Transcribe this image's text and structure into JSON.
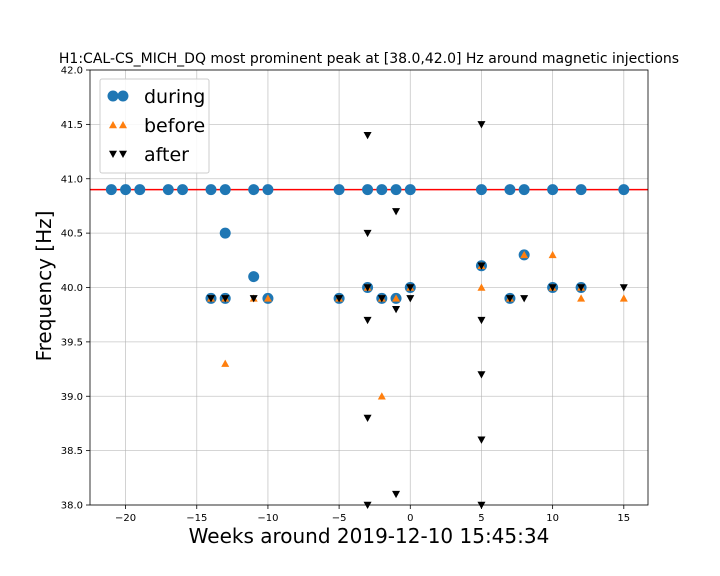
{
  "chart_data": {
    "type": "scatter",
    "title": "H1:CAL-CS_MICH_DQ most prominent peak at [38.0,42.0] Hz around magnetic injections",
    "xlabel": "Weeks around 2019-12-10 15:45:34",
    "ylabel": "Frequency [Hz]",
    "xlim": [
      -22.5,
      16.7
    ],
    "ylim": [
      38.0,
      42.0
    ],
    "x_ticks": [
      -20,
      -15,
      -10,
      -5,
      0,
      5,
      10,
      15
    ],
    "x_tick_labels": [
      "−20",
      "−15",
      "−10",
      "−5",
      "0",
      "5",
      "10",
      "15"
    ],
    "y_ticks": [
      38.0,
      38.5,
      39.0,
      39.5,
      40.0,
      40.5,
      41.0,
      41.5,
      42.0
    ],
    "y_tick_labels": [
      "38.0",
      "38.5",
      "39.0",
      "39.5",
      "40.0",
      "40.5",
      "41.0",
      "41.5",
      "42.0"
    ],
    "grid": true,
    "legend_position": "top-left",
    "reference_line": {
      "y": 40.9,
      "color": "#ff0000"
    },
    "series": [
      {
        "name": "during",
        "marker": "circle",
        "color": "#1f77b4",
        "points": [
          [
            -21,
            40.9
          ],
          [
            -20,
            40.9
          ],
          [
            -19,
            40.9
          ],
          [
            -17,
            40.9
          ],
          [
            -16,
            40.9
          ],
          [
            -14,
            40.9
          ],
          [
            -13,
            40.9
          ],
          [
            -11,
            40.9
          ],
          [
            -10,
            40.9
          ],
          [
            -5,
            40.9
          ],
          [
            -3,
            40.9
          ],
          [
            -2,
            40.9
          ],
          [
            -1,
            40.9
          ],
          [
            0,
            40.9
          ],
          [
            5,
            40.9
          ],
          [
            7,
            40.9
          ],
          [
            8,
            40.9
          ],
          [
            10,
            40.9
          ],
          [
            12,
            40.9
          ],
          [
            15,
            40.9
          ],
          [
            -13,
            40.5
          ],
          [
            -11,
            40.1
          ],
          [
            -14,
            39.9
          ],
          [
            -13,
            39.9
          ],
          [
            -10,
            39.9
          ],
          [
            -5,
            39.9
          ],
          [
            -3,
            40.0
          ],
          [
            -2,
            39.9
          ],
          [
            -1,
            39.9
          ],
          [
            0,
            40.0
          ],
          [
            5,
            40.2
          ],
          [
            7,
            39.9
          ],
          [
            8,
            40.3
          ],
          [
            10,
            40.0
          ],
          [
            12,
            40.0
          ]
        ]
      },
      {
        "name": "before",
        "marker": "triangle-up",
        "color": "#ff7f0e",
        "points": [
          [
            -14,
            39.9
          ],
          [
            -13,
            39.9
          ],
          [
            -13,
            39.3
          ],
          [
            -11,
            39.9
          ],
          [
            -10,
            39.9
          ],
          [
            -5,
            39.9
          ],
          [
            -3,
            40.0
          ],
          [
            -2,
            39.9
          ],
          [
            -2,
            39.0
          ],
          [
            -1,
            39.9
          ],
          [
            0,
            40.0
          ],
          [
            5,
            40.2
          ],
          [
            5,
            40.0
          ],
          [
            7,
            39.9
          ],
          [
            8,
            40.3
          ],
          [
            10,
            40.3
          ],
          [
            10,
            40.0
          ],
          [
            12,
            40.0
          ],
          [
            12,
            39.9
          ],
          [
            15,
            39.9
          ]
        ]
      },
      {
        "name": "after",
        "marker": "triangle-down",
        "color": "#000000",
        "points": [
          [
            -14,
            39.9
          ],
          [
            -13,
            39.9
          ],
          [
            -11,
            39.9
          ],
          [
            -5,
            39.9
          ],
          [
            -3,
            41.4
          ],
          [
            -3,
            40.5
          ],
          [
            -3,
            40.0
          ],
          [
            -3,
            39.7
          ],
          [
            -3,
            38.8
          ],
          [
            -3,
            38.0
          ],
          [
            -2,
            39.9
          ],
          [
            -1,
            40.7
          ],
          [
            -1,
            39.8
          ],
          [
            -1,
            38.1
          ],
          [
            0,
            39.9
          ],
          [
            0,
            40.0
          ],
          [
            5,
            41.5
          ],
          [
            5,
            40.2
          ],
          [
            5,
            39.7
          ],
          [
            5,
            39.2
          ],
          [
            5,
            38.6
          ],
          [
            5,
            38.0
          ],
          [
            7,
            39.9
          ],
          [
            8,
            39.9
          ],
          [
            10,
            40.0
          ],
          [
            12,
            40.0
          ],
          [
            15,
            40.0
          ]
        ]
      }
    ]
  }
}
